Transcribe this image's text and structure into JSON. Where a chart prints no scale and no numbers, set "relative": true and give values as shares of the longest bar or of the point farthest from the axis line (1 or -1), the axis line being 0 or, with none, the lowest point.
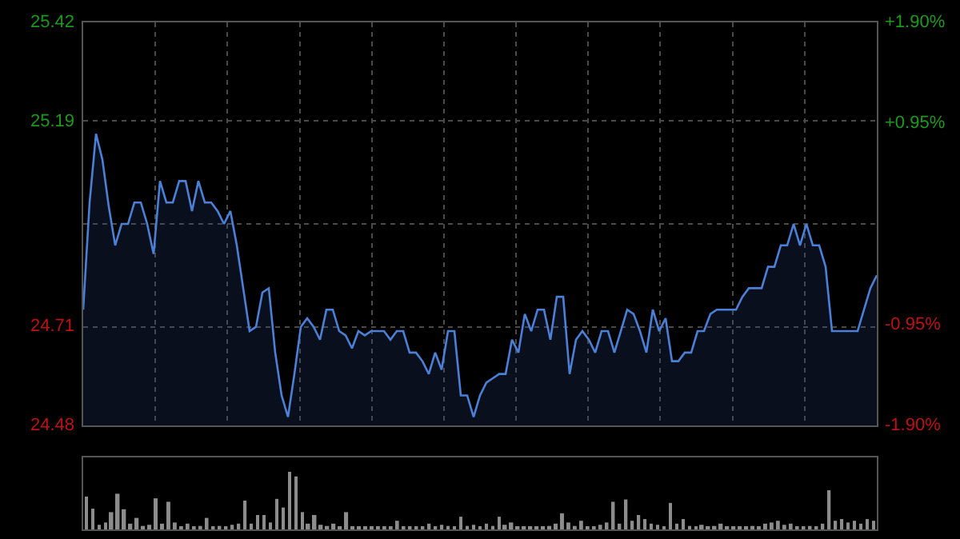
{
  "chart_data": [
    {
      "type": "area",
      "categories": [
        null,
        null,
        null,
        null,
        null,
        null,
        null,
        null,
        null,
        null,
        null,
        null,
        null,
        null,
        null,
        null,
        null,
        null,
        null,
        null,
        null,
        null,
        null,
        null,
        null,
        null,
        null,
        null,
        null,
        null,
        null,
        null,
        null,
        null,
        null,
        null,
        null,
        null,
        null,
        null,
        null,
        null,
        null,
        null,
        null,
        null,
        null,
        null,
        null,
        null,
        null,
        null,
        null,
        null,
        null,
        null,
        null,
        null,
        null,
        null,
        null,
        null,
        null,
        null,
        null,
        null,
        null,
        null,
        null,
        null,
        null,
        null,
        null,
        null,
        null,
        null,
        null,
        null,
        null,
        null,
        null,
        null,
        null,
        null,
        null,
        null,
        null,
        null,
        null,
        null,
        null,
        null,
        null,
        null,
        null,
        null,
        null,
        null,
        null,
        null,
        null,
        null,
        null,
        null,
        null,
        null,
        null,
        null,
        null,
        null,
        null,
        null,
        null,
        null,
        null,
        null,
        null,
        null,
        null,
        null,
        null,
        null,
        null,
        null,
        null
      ],
      "series": [
        {
          "color": "#4a80d8",
          "values": [
            24.75,
            25.0,
            25.16,
            25.1,
            24.99,
            24.9,
            24.95,
            24.95,
            25.0,
            25.0,
            24.95,
            24.88,
            25.05,
            25.0,
            25.0,
            25.05,
            25.05,
            24.98,
            25.05,
            25.0,
            25.0,
            24.98,
            24.95,
            24.98,
            24.9,
            24.8,
            24.7,
            24.71,
            24.79,
            24.8,
            24.65,
            24.55,
            24.5,
            24.6,
            24.71,
            24.73,
            24.71,
            24.68,
            24.75,
            24.75,
            24.7,
            24.69,
            24.66,
            24.7,
            24.69,
            24.7,
            24.7,
            24.7,
            24.68,
            24.7,
            24.7,
            24.65,
            24.65,
            24.63,
            24.6,
            24.65,
            24.61,
            24.7,
            24.7,
            24.55,
            24.55,
            24.5,
            24.55,
            24.58,
            24.59,
            24.6,
            24.6,
            24.68,
            24.65,
            24.74,
            24.7,
            24.75,
            24.75,
            24.68,
            24.78,
            24.78,
            24.6,
            24.68,
            24.7,
            24.68,
            24.65,
            24.7,
            24.7,
            24.65,
            24.7,
            24.75,
            24.74,
            24.7,
            24.65,
            24.75,
            24.7,
            24.73,
            24.63,
            24.63,
            24.65,
            24.65,
            24.7,
            24.7,
            24.74,
            24.75,
            24.75,
            24.75,
            24.75,
            24.78,
            24.8,
            24.8,
            24.8,
            24.85,
            24.85,
            24.9,
            24.9,
            24.95,
            24.9,
            24.95,
            24.9,
            24.9,
            24.85,
            24.7,
            24.7,
            24.7,
            24.7,
            24.7,
            24.75,
            24.8,
            24.83
          ]
        }
      ],
      "ylim": [
        24.48,
        25.42
      ],
      "yticks": [
        25.42,
        25.19,
        {
          "value": 24.95,
          "label": null
        },
        24.71,
        24.48
      ],
      "y2lim": [
        -1.9,
        1.9
      ],
      "y2ticks": [
        {
          "value": 1.9,
          "label": "+1.90%"
        },
        {
          "value": 0.95,
          "label": "+0.95%"
        },
        {
          "value": -0.95,
          "label": "-0.95%"
        },
        {
          "value": -1.9,
          "label": "-1.90%"
        }
      ],
      "grid": true
    },
    {
      "type": "bar",
      "relative": true,
      "color": "#8c8c8c",
      "categories": [
        null,
        null,
        null,
        null,
        null,
        null,
        null,
        null,
        null,
        null,
        null,
        null,
        null,
        null,
        null,
        null,
        null,
        null,
        null,
        null,
        null,
        null,
        null,
        null,
        null,
        null,
        null,
        null,
        null,
        null,
        null,
        null,
        null,
        null,
        null,
        null,
        null,
        null,
        null,
        null,
        null,
        null,
        null,
        null,
        null,
        null,
        null,
        null,
        null,
        null,
        null,
        null,
        null,
        null,
        null,
        null,
        null,
        null,
        null,
        null,
        null,
        null,
        null,
        null,
        null,
        null,
        null,
        null,
        null,
        null,
        null,
        null,
        null,
        null,
        null,
        null,
        null,
        null,
        null,
        null,
        null,
        null,
        null,
        null,
        null,
        null,
        null,
        null,
        null,
        null,
        null,
        null,
        null,
        null,
        null,
        null,
        null,
        null,
        null,
        null,
        null,
        null,
        null,
        null,
        null,
        null,
        null,
        null,
        null,
        null,
        null,
        null,
        null,
        null,
        null,
        null,
        null,
        null,
        null,
        null,
        null,
        null,
        null,
        null,
        null
      ],
      "values": [
        0.57,
        0.36,
        0.08,
        0.12,
        0.3,
        0.62,
        0.35,
        0.1,
        0.2,
        0.06,
        0.08,
        0.54,
        0.1,
        0.48,
        0.12,
        0.05,
        0.1,
        0.04,
        0.06,
        0.2,
        0.05,
        0.06,
        0.04,
        0.08,
        0.1,
        0.5,
        0.1,
        0.25,
        0.25,
        0.12,
        0.53,
        0.38,
        1,
        0.92,
        0.3,
        0.1,
        0.25,
        0.08,
        0.06,
        0.1,
        0.05,
        0.3,
        0.04,
        0.03,
        0.03,
        0.04,
        0.03,
        0.04,
        0.05,
        0.15,
        0.04,
        0.03,
        0.05,
        0.04,
        0.1,
        0.05,
        0.08,
        0.06,
        0.05,
        0.22,
        0.06,
        0.08,
        0.05,
        0.1,
        0.06,
        0.22,
        0.08,
        0.12,
        0.05,
        0.04,
        0.03,
        0.05,
        0.04,
        0.06,
        0.1,
        0.28,
        0.12,
        0.06,
        0.15,
        0.05,
        0.04,
        0.08,
        0.12,
        0.48,
        0.1,
        0.52,
        0.15,
        0.25,
        0.18,
        0.1,
        0.08,
        0.05,
        0.46,
        0.1,
        0.18,
        0.06,
        0.04,
        0.08,
        0.05,
        0.06,
        0.1,
        0.05,
        0.04,
        0.05,
        0.04,
        0.06,
        0.05,
        0.1,
        0.12,
        0.15,
        0.08,
        0.1,
        0.05,
        0.04,
        0.06,
        0.04,
        0.1,
        0.68,
        0.15,
        0.18,
        0.12,
        0.15,
        0.1,
        0.18,
        0.15
      ]
    }
  ]
}
